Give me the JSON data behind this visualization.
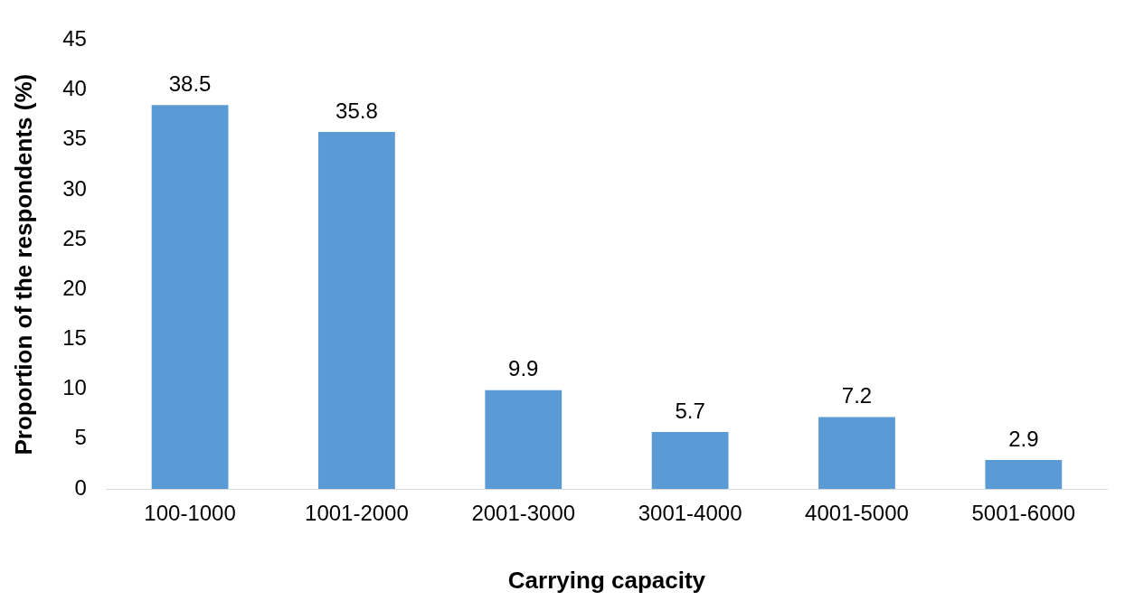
{
  "chart_data": {
    "type": "bar",
    "xlabel": "Carrying capacity",
    "ylabel": "Proportion of the respondents (%)",
    "categories": [
      "100-1000",
      "1001-2000",
      "2001-3000",
      "3001-4000",
      "4001-5000",
      "5001-6000"
    ],
    "values": [
      38.5,
      35.8,
      9.9,
      5.7,
      7.2,
      2.9
    ],
    "color": "#5b9bd5",
    "ylim": [
      0,
      45
    ],
    "yticks": [
      0,
      5,
      10,
      15,
      20,
      25,
      30,
      35,
      40,
      45
    ],
    "grid": false,
    "legend": false,
    "data_labels": true
  }
}
